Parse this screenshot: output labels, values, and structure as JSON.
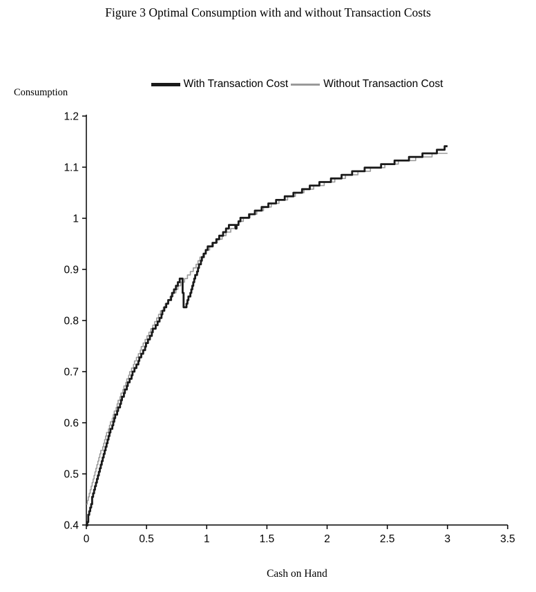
{
  "chart_data": {
    "type": "line",
    "title": "Figure 3 Optimal Consumption with and without Transaction Costs",
    "xlabel": "Cash on Hand",
    "ylabel": "Consumption",
    "xlim": [
      0,
      3.5
    ],
    "ylim": [
      0.4,
      1.2
    ],
    "x_ticks": [
      0,
      0.5,
      1,
      1.5,
      2,
      2.5,
      3,
      3.5
    ],
    "y_ticks": [
      0.4,
      0.5,
      0.6,
      0.7,
      0.8,
      0.9,
      1,
      1.1,
      1.2
    ],
    "grid": false,
    "legend_position": "top-center",
    "axis_color": "#000000",
    "background": "#ffffff",
    "series": [
      {
        "name": "With Transaction Cost",
        "color": "#1a1a1a",
        "width": 2.8,
        "points": [
          [
            0,
            0.4
          ],
          [
            0.05,
            0.455
          ],
          [
            0.1,
            0.5
          ],
          [
            0.15,
            0.545
          ],
          [
            0.2,
            0.585
          ],
          [
            0.25,
            0.62
          ],
          [
            0.3,
            0.65
          ],
          [
            0.35,
            0.68
          ],
          [
            0.4,
            0.705
          ],
          [
            0.45,
            0.73
          ],
          [
            0.5,
            0.755
          ],
          [
            0.55,
            0.78
          ],
          [
            0.6,
            0.8
          ],
          [
            0.65,
            0.825
          ],
          [
            0.7,
            0.845
          ],
          [
            0.75,
            0.868
          ],
          [
            0.79,
            0.888
          ],
          [
            0.81,
            0.82
          ],
          [
            0.84,
            0.838
          ],
          [
            0.88,
            0.868
          ],
          [
            0.92,
            0.898
          ],
          [
            0.96,
            0.922
          ],
          [
            1.0,
            0.94
          ],
          [
            1.05,
            0.95
          ],
          [
            1.1,
            0.962
          ],
          [
            1.15,
            0.975
          ],
          [
            1.2,
            0.99
          ],
          [
            1.24,
            0.983
          ],
          [
            1.28,
            0.998
          ],
          [
            1.35,
            1.005
          ],
          [
            1.4,
            1.012
          ],
          [
            1.5,
            1.025
          ],
          [
            1.6,
            1.035
          ],
          [
            1.7,
            1.045
          ],
          [
            1.8,
            1.055
          ],
          [
            1.9,
            1.065
          ],
          [
            2.0,
            1.072
          ],
          [
            2.1,
            1.08
          ],
          [
            2.2,
            1.088
          ],
          [
            2.3,
            1.095
          ],
          [
            2.4,
            1.1
          ],
          [
            2.5,
            1.106
          ],
          [
            2.6,
            1.112
          ],
          [
            2.7,
            1.118
          ],
          [
            2.8,
            1.124
          ],
          [
            2.9,
            1.13
          ],
          [
            3.0,
            1.14
          ]
        ]
      },
      {
        "name": "Without Transaction Cost",
        "color": "#999999",
        "width": 1.6,
        "points": [
          [
            0,
            0.44
          ],
          [
            0.05,
            0.487
          ],
          [
            0.1,
            0.528
          ],
          [
            0.15,
            0.565
          ],
          [
            0.2,
            0.6
          ],
          [
            0.25,
            0.633
          ],
          [
            0.3,
            0.663
          ],
          [
            0.35,
            0.692
          ],
          [
            0.4,
            0.718
          ],
          [
            0.45,
            0.743
          ],
          [
            0.5,
            0.768
          ],
          [
            0.55,
            0.79
          ],
          [
            0.6,
            0.81
          ],
          [
            0.65,
            0.828
          ],
          [
            0.7,
            0.845
          ],
          [
            0.75,
            0.862
          ],
          [
            0.8,
            0.876
          ],
          [
            0.85,
            0.89
          ],
          [
            0.9,
            0.905
          ],
          [
            0.95,
            0.923
          ],
          [
            1.0,
            0.938
          ],
          [
            1.05,
            0.948
          ],
          [
            1.1,
            0.958
          ],
          [
            1.15,
            0.968
          ],
          [
            1.2,
            0.978
          ],
          [
            1.25,
            0.988
          ],
          [
            1.3,
            0.998
          ],
          [
            1.35,
            1.004
          ],
          [
            1.4,
            1.01
          ],
          [
            1.5,
            1.022
          ],
          [
            1.6,
            1.033
          ],
          [
            1.7,
            1.043
          ],
          [
            1.8,
            1.053
          ],
          [
            1.9,
            1.062
          ],
          [
            2.0,
            1.07
          ],
          [
            2.1,
            1.078
          ],
          [
            2.2,
            1.085
          ],
          [
            2.3,
            1.092
          ],
          [
            2.4,
            1.098
          ],
          [
            2.5,
            1.104
          ],
          [
            2.6,
            1.11
          ],
          [
            2.7,
            1.115
          ],
          [
            2.8,
            1.12
          ],
          [
            2.9,
            1.125
          ],
          [
            3.0,
            1.13
          ]
        ]
      }
    ]
  }
}
